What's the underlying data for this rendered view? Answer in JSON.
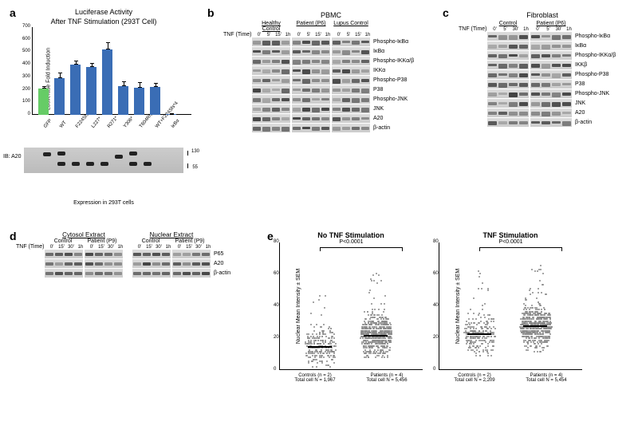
{
  "panel_labels": {
    "a": "a",
    "b": "b",
    "c": "c",
    "d": "d",
    "e": "e"
  },
  "panel_a": {
    "chart": {
      "type": "bar",
      "title_line1": "Luciferase Activity",
      "title_line2": "After TNF Stimulation (293T Cell)",
      "y_label": "Luciferase Fold Induction",
      "ylim": [
        0,
        700
      ],
      "yticks": [
        0,
        100,
        200,
        300,
        400,
        500,
        600,
        700
      ],
      "categories": [
        "GFP",
        "WT",
        "F224Sfs*4",
        "L227*",
        "R271*",
        "Y306*",
        "T604Rfs*93",
        "WT+F224Sfs*4",
        "IκBα"
      ],
      "values": [
        210,
        290,
        400,
        380,
        525,
        230,
        215,
        220,
        5
      ],
      "errors": [
        20,
        45,
        30,
        32,
        55,
        40,
        45,
        35,
        3
      ],
      "colors": [
        "#66cc66",
        "#3a6db5",
        "#3a6db5",
        "#3a6db5",
        "#3a6db5",
        "#3a6db5",
        "#3a6db5",
        "#3a6db5",
        "#3a6db5"
      ],
      "title_fontsize": 9,
      "label_fontsize": 7,
      "background_color": "#ffffff"
    },
    "blot": {
      "label": "IB: A20",
      "markers": [
        "130",
        "55"
      ],
      "caption": "Expression in 293T cells"
    }
  },
  "panel_b": {
    "title": "PBMC",
    "groups": [
      "Healthy Control",
      "Patient (P6)",
      "Lupus Control"
    ],
    "timepoints": [
      "0'",
      "5'",
      "15'",
      "1h"
    ],
    "tnf_label": "TNF (Time)",
    "proteins": [
      "Phospho-IκBα",
      "IκBα",
      "Phospho-IKKα/β",
      "IKKα",
      "Phospho-P38",
      "P38",
      "Phospho-JNK",
      "JNK",
      "A20",
      "β-actin"
    ]
  },
  "panel_c": {
    "title": "Fibroblast",
    "groups": [
      "Control",
      "Patient (P6)"
    ],
    "timepoints": [
      "0'",
      "5'",
      "30'",
      "1h"
    ],
    "tnf_label": "TNF (Time)",
    "proteins": [
      "Phospho-IκBα",
      "IκBα",
      "Phospho-IKKα/β",
      "IKKβ",
      "Phospho-P38",
      "P38",
      "Phospho-JNK",
      "JNK",
      "A20",
      "β-actin"
    ]
  },
  "panel_d": {
    "sections": [
      "Cytosol Extract",
      "Nuclear Extract"
    ],
    "groups": [
      "Control",
      "Patient (P9)"
    ],
    "timepoints": [
      "0'",
      "15'",
      "30'",
      "1h"
    ],
    "tnf_label": "TNF (Time)",
    "proteins": [
      "P65",
      "A20",
      "β-actin"
    ]
  },
  "panel_e": {
    "plots": [
      {
        "title": "No TNF Stimulation",
        "pvalue": "P<0.0001",
        "ylabel": "Nuclear Mean Intensity ± SEM",
        "ylim": [
          0,
          80
        ],
        "yticks": [
          0,
          20,
          40,
          60,
          80
        ],
        "x_labels": [
          {
            "line1": "Controls (n = 2)",
            "line2": "Total cell N = 1,967"
          },
          {
            "line1": "Patients (n = 4)",
            "line2": "Total cell N = 5,456"
          }
        ],
        "group_means": [
          15,
          22
        ]
      },
      {
        "title": "TNF Stimulation",
        "pvalue": "P<0.0001",
        "ylabel": "Nuclear Mean Intensity ± SEM",
        "ylim": [
          0,
          80
        ],
        "yticks": [
          0,
          20,
          40,
          60,
          80
        ],
        "x_labels": [
          {
            "line1": "Controls (n = 2)",
            "line2": "Total cell N = 2,209"
          },
          {
            "line1": "Patients (n = 4)",
            "line2": "Total cell N = 5,454"
          }
        ],
        "group_means": [
          23,
          28
        ]
      }
    ],
    "dot_color": "#888888"
  }
}
